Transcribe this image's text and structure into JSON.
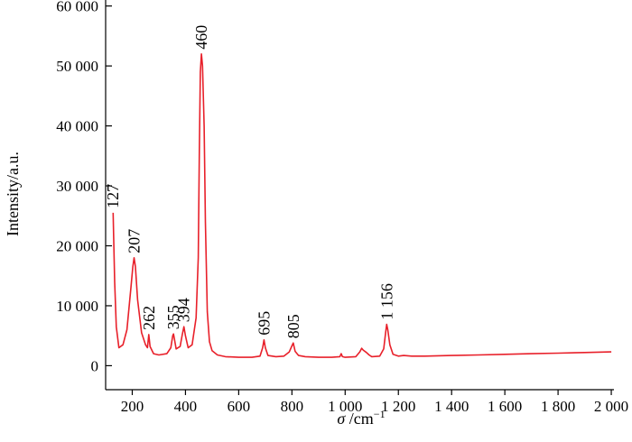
{
  "chart_data": {
    "type": "line",
    "title": "",
    "xlabel": {
      "symbol": "σ",
      "unit": " /cm",
      "sup": "−1"
    },
    "ylabel": "Intensity/a.u.",
    "xlim": [
      100,
      2010
    ],
    "ylim": [
      -4000,
      61000
    ],
    "x_ticks": [
      200,
      400,
      600,
      800,
      1000,
      1200,
      1400,
      1600,
      1800,
      2000
    ],
    "x_tick_labels": [
      "200",
      "400",
      "600",
      "800",
      "1 000",
      "1 200",
      "1 400",
      "1 600",
      "1 800",
      "2 000"
    ],
    "y_ticks": [
      0,
      10000,
      20000,
      30000,
      40000,
      50000,
      60000
    ],
    "y_tick_labels": [
      "0",
      "10 000",
      "20 000",
      "30 000",
      "40 000",
      "50 000",
      "60 000"
    ],
    "grid": false,
    "series": [
      {
        "color": "#e8202a",
        "x": [
          128,
          130,
          134,
          140,
          150,
          165,
          180,
          195,
          202,
          207,
          212,
          220,
          235,
          250,
          257,
          262,
          267,
          280,
          300,
          330,
          345,
          352,
          355,
          358,
          365,
          380,
          388,
          394,
          400,
          410,
          425,
          440,
          448,
          452,
          456,
          460,
          464,
          470,
          475,
          482,
          490,
          500,
          520,
          550,
          600,
          650,
          680,
          690,
          695,
          700,
          710,
          740,
          770,
          790,
          800,
          805,
          812,
          825,
          850,
          900,
          950,
          980,
          985,
          990,
          1000,
          1040,
          1055,
          1062,
          1068,
          1080,
          1090,
          1100,
          1130,
          1145,
          1152,
          1156,
          1160,
          1168,
          1180,
          1200,
          1220,
          1250,
          1300,
          1400,
          1500,
          1600,
          1700,
          1800,
          1900,
          2000
        ],
        "y": [
          25500,
          22000,
          14000,
          6500,
          3000,
          3500,
          6000,
          13000,
          16500,
          18000,
          16500,
          11000,
          5500,
          3500,
          3000,
          5200,
          3200,
          2000,
          1800,
          2000,
          3000,
          5000,
          5300,
          4600,
          2800,
          3200,
          5200,
          6500,
          5000,
          3000,
          3500,
          8000,
          18000,
          36000,
          49000,
          52000,
          50000,
          40000,
          24000,
          9000,
          4000,
          2500,
          1800,
          1500,
          1400,
          1400,
          1600,
          3000,
          4300,
          3000,
          1700,
          1500,
          1600,
          2300,
          3300,
          3800,
          2400,
          1700,
          1500,
          1400,
          1400,
          1500,
          2000,
          1500,
          1400,
          1500,
          2300,
          2900,
          2600,
          2200,
          1800,
          1500,
          1600,
          2800,
          5500,
          6900,
          6000,
          3500,
          1900,
          1600,
          1700,
          1600,
          1600,
          1700,
          1800,
          1900,
          2000,
          2100,
          2200,
          2300
        ]
      }
    ],
    "peak_labels": [
      {
        "x": 127,
        "text": "127"
      },
      {
        "x": 207,
        "text": "207"
      },
      {
        "x": 262,
        "text": "262"
      },
      {
        "x": 355,
        "text": "355"
      },
      {
        "x": 394,
        "text": "394"
      },
      {
        "x": 460,
        "text": "460"
      },
      {
        "x": 695,
        "text": "695"
      },
      {
        "x": 805,
        "text": "805"
      },
      {
        "x": 1156,
        "text": "1 156"
      }
    ]
  }
}
